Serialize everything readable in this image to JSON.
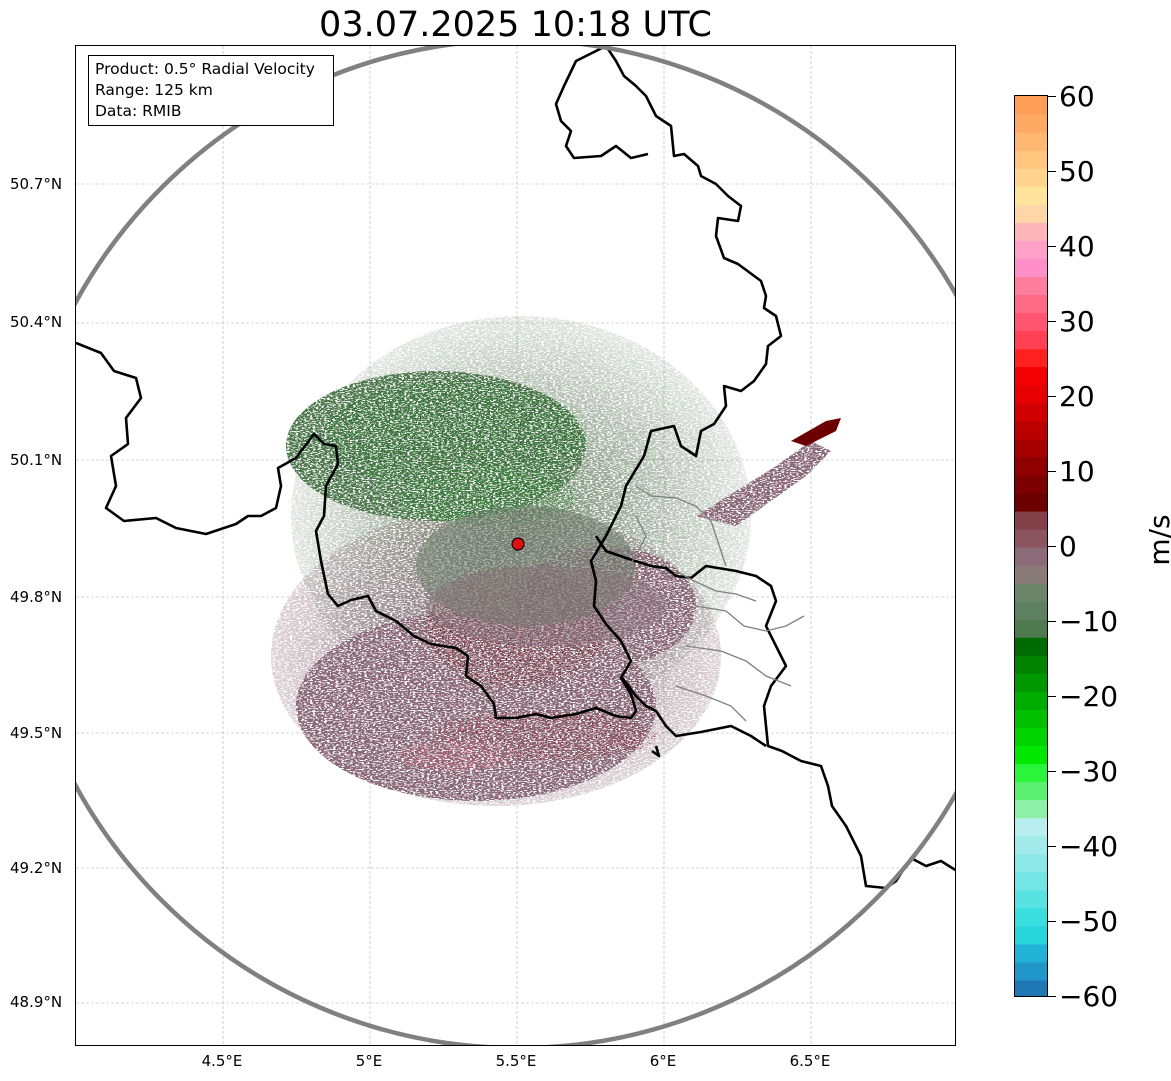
{
  "title": "03.07.2025 10:18 UTC",
  "info_box": {
    "product": "Product: 0.5° Radial Velocity",
    "range": "Range: 125 km",
    "data": "Data: RMIB"
  },
  "chart_data": {
    "type": "heatmap",
    "title": "03.07.2025 10:18 UTC",
    "xlabel": "",
    "ylabel": "",
    "x_ticks": [
      "4.5°E",
      "5°E",
      "5.5°E",
      "6°E",
      "6.5°E"
    ],
    "x_tick_values": [
      4.5,
      5.0,
      5.5,
      6.0,
      6.5
    ],
    "y_ticks": [
      "50.7°N",
      "50.4°N",
      "50.1°N",
      "49.8°N",
      "49.5°N",
      "49.2°N",
      "48.9°N"
    ],
    "y_tick_values": [
      50.7,
      50.4,
      50.1,
      49.8,
      49.5,
      49.2,
      48.9
    ],
    "xlim": [
      4.0,
      7.0
    ],
    "ylim": [
      48.8,
      51.0
    ],
    "radar_site": {
      "lon": 5.505,
      "lat": 49.914
    },
    "range_km": 125,
    "grid": true,
    "colorbar": {
      "label": "m/s",
      "vmin": -60,
      "vmax": 60,
      "ticks": [
        "60",
        "50",
        "40",
        "30",
        "20",
        "10",
        "0",
        "−10",
        "−20",
        "−30",
        "−40",
        "−50",
        "−60"
      ],
      "colors_bottom_to_top": [
        "#1f77b4",
        "#2196c9",
        "#22b2d6",
        "#29d5dd",
        "#3bdedf",
        "#58e2e2",
        "#73e5e5",
        "#8ce8e8",
        "#a3ebeb",
        "#b8eef0",
        "#8ff0a8",
        "#5cf070",
        "#2af53a",
        "#00e800",
        "#00d400",
        "#00c000",
        "#00ac00",
        "#009800",
        "#008400",
        "#006b00",
        "#4f7a4f",
        "#5c8060",
        "#6b8568",
        "#8a7a78",
        "#8b6b78",
        "#8b5560",
        "#844048",
        "#6b0000",
        "#7d0000",
        "#8f0000",
        "#a60000",
        "#bb0000",
        "#d00000",
        "#e60000",
        "#f50000",
        "#ff2020",
        "#ff4055",
        "#ff5570",
        "#ff6a85",
        "#ff7d9e",
        "#ff8fc8",
        "#ffa0c8",
        "#ffb4b8",
        "#ffd6a8",
        "#ffe49b",
        "#ffd48e",
        "#ffc67f",
        "#ffb872",
        "#ffaa64",
        "#ff9e58"
      ]
    },
    "echo_regions": [
      {
        "name": "outbound-near-zero",
        "velocity_ms": 3,
        "color": "#8b6b78"
      },
      {
        "name": "inbound-near-zero",
        "velocity_ms": -3,
        "color": "#6b8568"
      },
      {
        "name": "inbound-moderate",
        "velocity_ms": -12,
        "color": "#006b00"
      },
      {
        "name": "outbound-moderate",
        "velocity_ms": 12,
        "color": "#7d0000"
      }
    ]
  }
}
